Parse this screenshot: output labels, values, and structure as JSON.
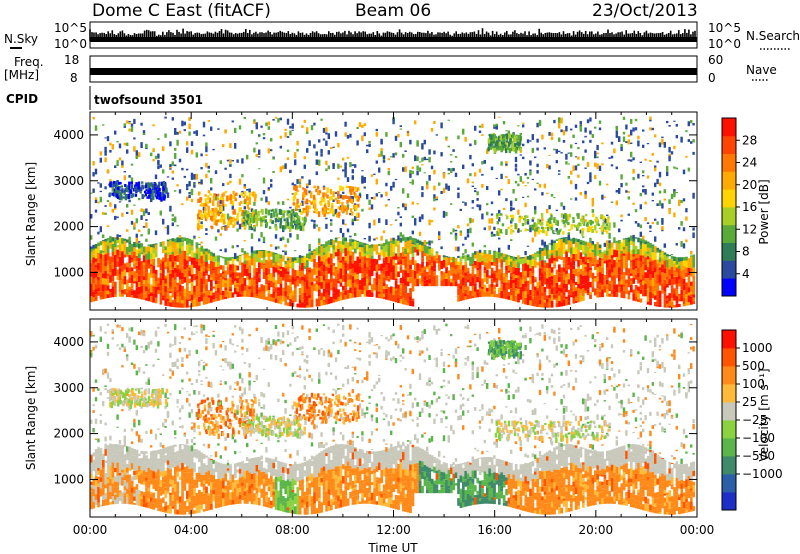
{
  "header": {
    "title": "Dome C East (fitACF)",
    "beam": "Beam 06",
    "date": "23/Oct/2013"
  },
  "status_panels": {
    "nsky_label": "N.Sky",
    "nsky_ticks": [
      "10^5",
      "10^0"
    ],
    "nsearch_label": "N.Search",
    "nsearch_ticks": [
      "10^5",
      "10^0"
    ],
    "freq_label_1": "Freq.",
    "freq_label_2": "[MHz]",
    "freq_ticks": [
      "18",
      "8"
    ],
    "nave_label": "Nave",
    "nave_ticks": [
      "60",
      "0"
    ],
    "cpid_label": "CPID",
    "cpid_value": "twofsound 3501"
  },
  "colors": {
    "power_scale": [
      "#0000ff",
      "#2a4aa0",
      "#2e7d57",
      "#5aaa3a",
      "#a8cf28",
      "#ffd400",
      "#ffaa00",
      "#ff7800",
      "#ff4500",
      "#ff1100"
    ],
    "velocity_scale": [
      "#1e2fc8",
      "#2b5fa8",
      "#3e8a6a",
      "#5ab64a",
      "#8ad240",
      "#c8c8bb",
      "#ffba3a",
      "#ff8a1a",
      "#ff5500",
      "#ff1100"
    ]
  },
  "chart_data": [
    {
      "type": "heatmap",
      "name": "power",
      "ylabel": "Slant Range [km]",
      "xlabel": "",
      "ylim": [
        180,
        4500
      ],
      "xlim_hours": [
        0,
        24
      ],
      "y_ticks": [
        "1000",
        "2000",
        "3000",
        "4000"
      ],
      "x_ticks": [
        "00:00",
        "04:00",
        "08:00",
        "12:00",
        "16:00",
        "20:00",
        "00:00"
      ],
      "colorbar": {
        "label": "Power [dB]",
        "ticks": [
          "4",
          "8",
          "12",
          "16",
          "20",
          "24",
          "28"
        ]
      }
    },
    {
      "type": "heatmap",
      "name": "velocity",
      "ylabel": "Slant Range [km]",
      "xlabel": "Time UT",
      "ylim": [
        180,
        4500
      ],
      "xlim_hours": [
        0,
        24
      ],
      "y_ticks": [
        "1000",
        "2000",
        "3000",
        "4000"
      ],
      "x_ticks": [
        "00:00",
        "04:00",
        "08:00",
        "12:00",
        "16:00",
        "20:00",
        "00:00"
      ],
      "colorbar": {
        "label": "Velocity [m s⁻¹]",
        "ticks": [
          "1000",
          "500",
          "100",
          "25",
          "−25",
          "−100",
          "−500",
          "−1000"
        ]
      }
    }
  ]
}
